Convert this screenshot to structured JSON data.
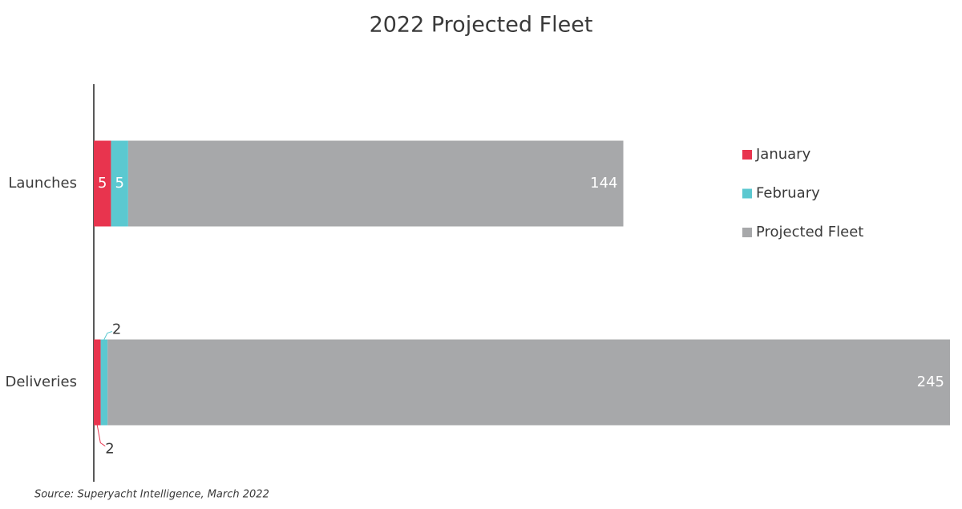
{
  "chart_data": {
    "type": "stacked-bar-horizontal",
    "title": "2022 Projected Fleet",
    "categories": [
      "Launches",
      "Deliveries"
    ],
    "series": [
      {
        "name": "January",
        "color": "#e8344e",
        "values": [
          5,
          2
        ]
      },
      {
        "name": "February",
        "color": "#5bc8d0",
        "values": [
          5,
          2
        ]
      },
      {
        "name": "Projected Fleet",
        "color": "#a7a8aa",
        "values": [
          144,
          245
        ]
      }
    ],
    "legend": "right",
    "source": "Source: Superyacht Intelligence, March 2022"
  }
}
